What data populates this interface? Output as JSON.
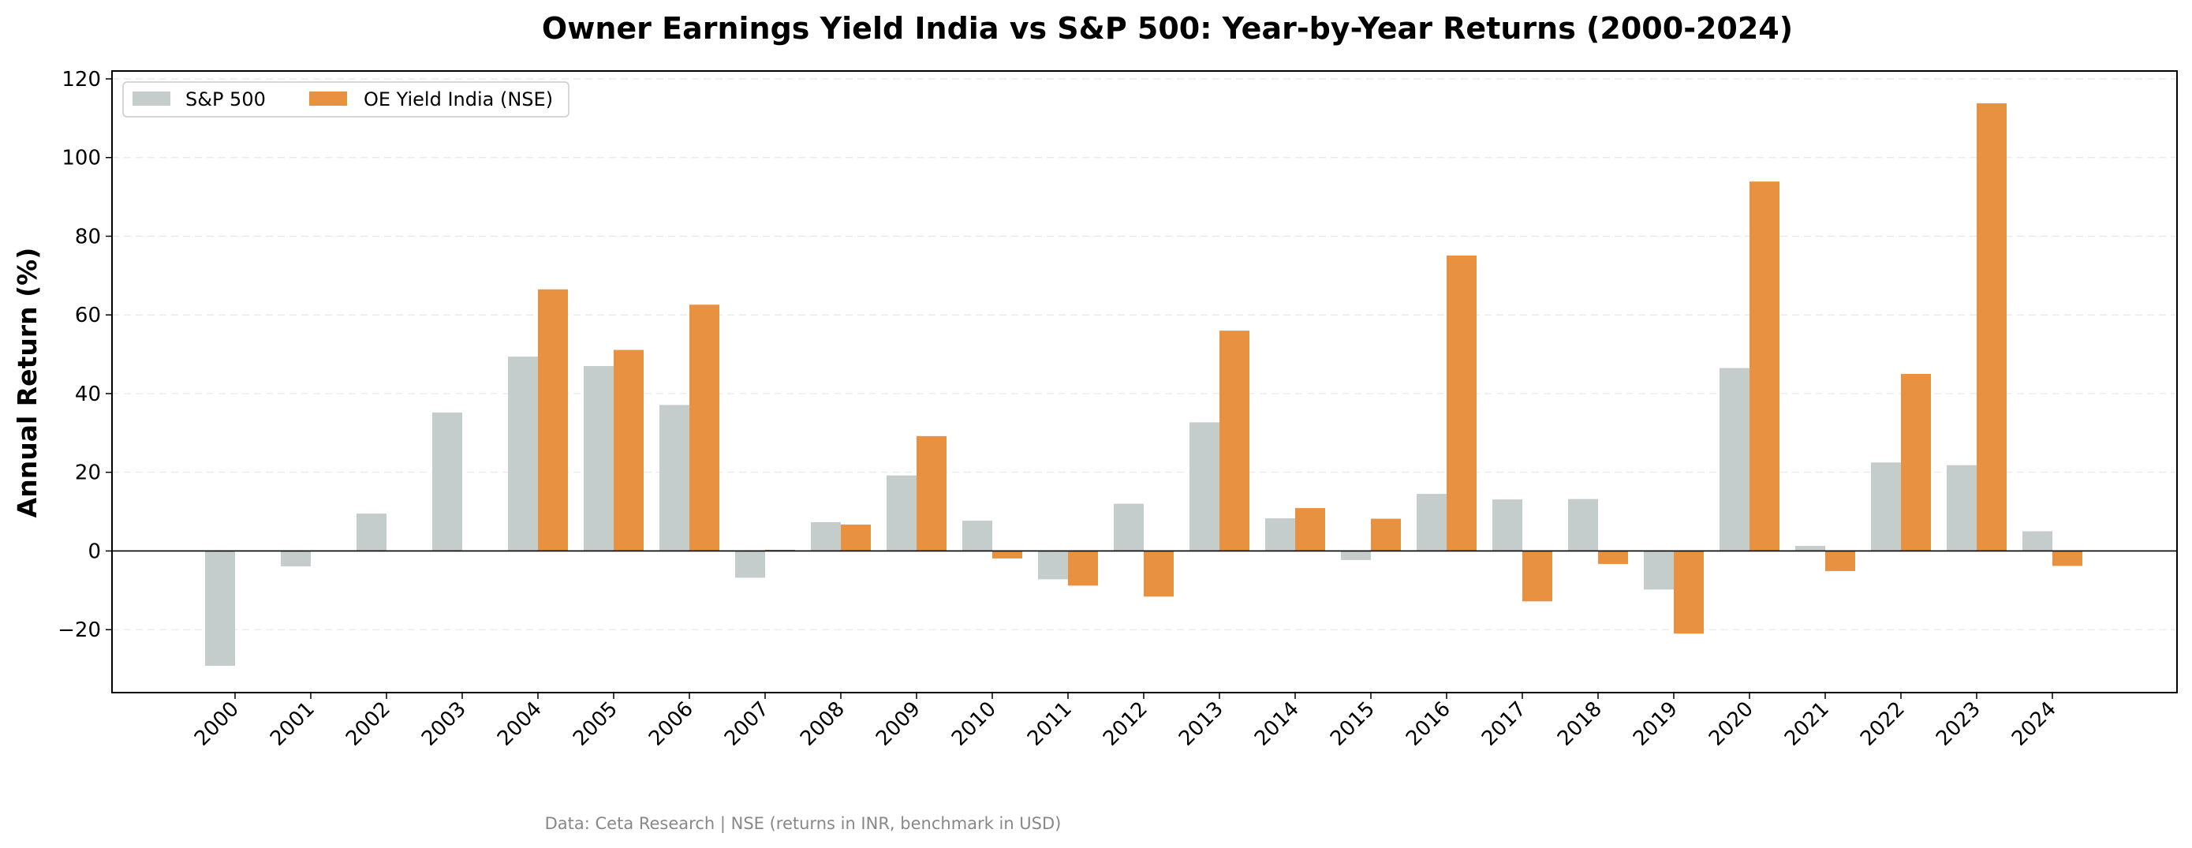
{
  "chart_data": {
    "type": "bar",
    "title": "Owner Earnings Yield India vs S&P 500: Year-by-Year Returns (2000-2024)",
    "xlabel": "",
    "ylabel": "Annual Return (%)",
    "ylim": [
      -36,
      122
    ],
    "yticks": [
      -20,
      0,
      20,
      40,
      60,
      80,
      100,
      120
    ],
    "ytick_labels": [
      "−20",
      "0",
      "20",
      "40",
      "60",
      "80",
      "100",
      "120"
    ],
    "grid": "y-dashed",
    "legend_position": "top-left",
    "categories": [
      "2000",
      "2001",
      "2002",
      "2003",
      "2004",
      "2005",
      "2006",
      "2007",
      "2008",
      "2009",
      "2010",
      "2011",
      "2012",
      "2013",
      "2014",
      "2015",
      "2016",
      "2017",
      "2018",
      "2019",
      "2020",
      "2021",
      "2022",
      "2023",
      "2024"
    ],
    "series": [
      {
        "name": "S&P 500",
        "color": "#c4cccc",
        "values": [
          -29.2,
          -3.9,
          9.5,
          35.2,
          49.4,
          47.0,
          37.1,
          -6.8,
          7.3,
          19.2,
          7.7,
          -7.2,
          12.0,
          32.7,
          8.3,
          -2.3,
          14.5,
          13.1,
          13.2,
          -9.8,
          46.5,
          1.3,
          22.5,
          21.8,
          5.0
        ]
      },
      {
        "name": "OE Yield India (NSE)",
        "color": "#e89141",
        "values": [
          null,
          null,
          null,
          null,
          66.5,
          51.1,
          62.6,
          0.3,
          6.7,
          29.2,
          -1.9,
          -8.8,
          -11.6,
          56.0,
          10.9,
          8.2,
          75.1,
          -12.8,
          -3.3,
          -21.0,
          93.9,
          -5.1,
          45.0,
          113.8,
          -3.8
        ]
      }
    ],
    "source_note": "Data: Ceta Research | NSE (returns in INR, benchmark in USD)"
  }
}
